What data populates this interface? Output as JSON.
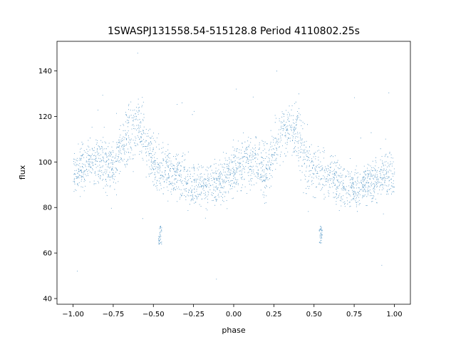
{
  "chart_data": {
    "type": "scatter",
    "title": "1SWASPJ131558.54-515128.8 Period 4110802.25s",
    "xlabel": "phase",
    "ylabel": "flux",
    "xlim": [
      -1.1,
      1.1
    ],
    "ylim": [
      37.5,
      153
    ],
    "xticks": [
      -1.0,
      -0.75,
      -0.5,
      -0.25,
      0.0,
      0.25,
      0.5,
      0.75,
      1.0
    ],
    "xtick_labels": [
      "−1.00",
      "−0.75",
      "−0.50",
      "−0.25",
      "0.00",
      "0.25",
      "0.50",
      "0.75",
      "1.00"
    ],
    "yticks": [
      40,
      60,
      80,
      100,
      120,
      140
    ],
    "ytick_labels": [
      "40",
      "60",
      "80",
      "100",
      "120",
      "140"
    ],
    "grid": false,
    "legend": "none",
    "point_color": "#1f77b4",
    "series": [
      {
        "phase": [
          -0.98,
          -0.95,
          -0.92,
          -0.85,
          -0.8,
          -0.75,
          -0.7,
          -0.65,
          -0.6,
          -0.55,
          -0.5,
          -0.45,
          -0.4,
          -0.35,
          -0.3,
          -0.25,
          -0.2,
          -0.15,
          -0.1,
          -0.05,
          0.0,
          0.02,
          0.05,
          0.08,
          0.15,
          0.2,
          0.25,
          0.3,
          0.35,
          0.4,
          0.45,
          0.5,
          0.55,
          0.6,
          0.65,
          0.7,
          0.75,
          0.8,
          0.85,
          0.9,
          0.95,
          1.0
        ],
        "flux_center": [
          96,
          97,
          99,
          101,
          100,
          96,
          106,
          113,
          116,
          111,
          99,
          97,
          95,
          94,
          92,
          90,
          89,
          90,
          92,
          93,
          96,
          97,
          99,
          101,
          100,
          96,
          106,
          113,
          116,
          111,
          99,
          97,
          95,
          94,
          92,
          90,
          89,
          90,
          92,
          93,
          96,
          96
        ],
        "flux_spread": [
          8,
          9,
          9,
          10,
          10,
          9,
          11,
          12,
          13,
          12,
          10,
          9,
          9,
          9,
          8,
          8,
          8,
          8,
          9,
          9,
          9,
          8,
          9,
          9,
          10,
          10,
          9,
          11,
          12,
          13,
          12,
          10,
          9,
          9,
          9,
          8,
          8,
          8,
          8,
          9,
          9,
          9
        ]
      }
    ],
    "outlier_clusters": [
      {
        "phase": -0.46,
        "flux_range": [
          64,
          72
        ]
      },
      {
        "phase": 0.54,
        "flux_range": [
          64,
          72
        ]
      }
    ]
  }
}
